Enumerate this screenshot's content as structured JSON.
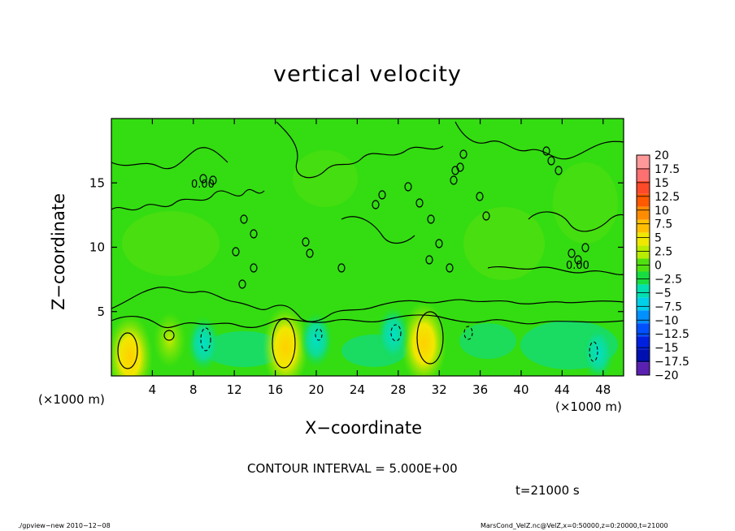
{
  "title": "vertical velocity",
  "x_unit_left": "(×1000 m)",
  "x_unit_right": "(×1000 m)",
  "xlabel": "X−coordinate",
  "ylabel": "Z−coordinate",
  "contour_interval": "CONTOUR INTERVAL = 5.000E+00",
  "time_label": "t=21000 s",
  "footer_left": "./gpview−new   2010−12−08",
  "footer_right": "MarsCond_VelZ.nc@VelZ,x=0:50000,z=0:20000,t=21000",
  "contour_labels": [
    "0.00",
    "0.00"
  ],
  "colors": {
    "background_field": "#33dd11",
    "contour_line": "#000000"
  },
  "chart_data": {
    "type": "heatmap",
    "title": "vertical velocity",
    "xlabel": "X−coordinate",
    "ylabel": "Z−coordinate",
    "xlim": [
      0,
      50
    ],
    "ylim": [
      0,
      20
    ],
    "x_ticks": [
      "4",
      "8",
      "12",
      "16",
      "20",
      "24",
      "28",
      "32",
      "36",
      "40",
      "44",
      "48"
    ],
    "y_ticks": [
      "5",
      "10",
      "15"
    ],
    "x_tick_values": [
      4,
      8,
      12,
      16,
      20,
      24,
      28,
      32,
      36,
      40,
      44,
      48
    ],
    "y_tick_values": [
      5,
      10,
      15
    ],
    "colorbar": {
      "levels": [
        "20",
        "17.5",
        "15",
        "12.5",
        "10",
        "7.5",
        "5",
        "2.5",
        "0",
        "−2.5",
        "−5",
        "−7.5",
        "−10",
        "−12.5",
        "−15",
        "−17.5",
        "−20"
      ],
      "colors": [
        "#ff9999",
        "#ff7070",
        "#ff4a2a",
        "#ff5a00",
        "#ff8c00",
        "#ffbf00",
        "#f0e800",
        "#b8ec00",
        "#4fe010",
        "#18dd40",
        "#00e0b0",
        "#00d0e8",
        "#0090ff",
        "#0050ff",
        "#0020e0",
        "#0010b0",
        "#5a20b0"
      ]
    },
    "features": [
      {
        "kind": "updraft",
        "x": 1.8,
        "z": 1.5,
        "level": 7.5
      },
      {
        "kind": "updraft",
        "x": 17.0,
        "z": 2.2,
        "level": 7.5
      },
      {
        "kind": "updraft",
        "x": 30.5,
        "z": 2.5,
        "level": 7.5
      },
      {
        "kind": "updraft",
        "x": 5.7,
        "z": 2.8,
        "level": 5
      },
      {
        "kind": "downdraft",
        "x": 9.0,
        "z": 2.5,
        "level": -5
      },
      {
        "kind": "downdraft",
        "x": 27.5,
        "z": 3.2,
        "level": -5
      },
      {
        "kind": "downdraft",
        "x": 47.5,
        "z": 1.8,
        "level": -5
      },
      {
        "kind": "downdraft",
        "x": 20.0,
        "z": 2.8,
        "level": -5
      }
    ]
  }
}
